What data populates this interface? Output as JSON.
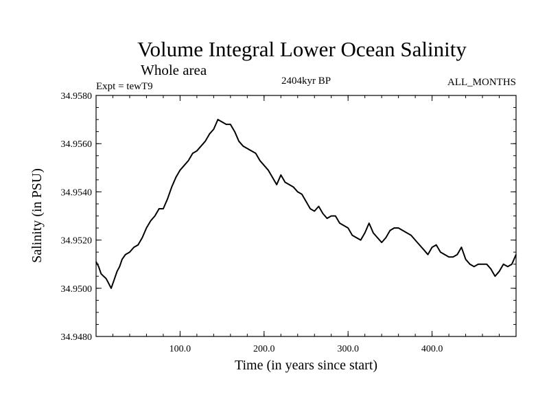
{
  "chart_data": {
    "type": "line",
    "title": "Volume Integral Lower Ocean Salinity",
    "subtitle": "Whole area",
    "expt_label": "Expt = tewT9",
    "center_label": "2404kyr BP",
    "right_label": "ALL_MONTHS",
    "xlabel": "Time (in years since start)",
    "ylabel": "Salinity (in PSU)",
    "xlim": [
      0,
      500
    ],
    "ylim": [
      34.948,
      34.958
    ],
    "xticks": [
      100,
      200,
      300,
      400
    ],
    "xtick_labels": [
      "100.0",
      "200.0",
      "300.0",
      "400.0"
    ],
    "yticks": [
      34.948,
      34.95,
      34.952,
      34.954,
      34.956,
      34.958
    ],
    "ytick_labels": [
      "34.9480",
      "34.9500",
      "34.9520",
      "34.9540",
      "34.9560",
      "34.9580"
    ],
    "series": [
      {
        "name": "salinity",
        "x": [
          0,
          3,
          6,
          9,
          12,
          15,
          18,
          21,
          25,
          28,
          31,
          35,
          40,
          45,
          50,
          55,
          60,
          65,
          70,
          75,
          80,
          85,
          90,
          95,
          100,
          105,
          110,
          115,
          120,
          125,
          130,
          135,
          140,
          145,
          150,
          155,
          160,
          165,
          170,
          175,
          180,
          185,
          190,
          195,
          200,
          205,
          210,
          215,
          220,
          225,
          230,
          235,
          240,
          245,
          250,
          255,
          260,
          265,
          270,
          275,
          280,
          285,
          290,
          295,
          300,
          305,
          310,
          315,
          320,
          325,
          330,
          335,
          340,
          345,
          350,
          355,
          360,
          365,
          370,
          375,
          380,
          385,
          390,
          395,
          400,
          405,
          410,
          415,
          420,
          425,
          430,
          435,
          440,
          445,
          450,
          455,
          460,
          465,
          470,
          475,
          480,
          485,
          490,
          495,
          500
        ],
        "values": [
          34.9511,
          34.9509,
          34.9506,
          34.9505,
          34.9504,
          34.9502,
          34.95,
          34.9503,
          34.9507,
          34.9509,
          34.9512,
          34.9514,
          34.9515,
          34.9517,
          34.9518,
          34.9521,
          34.9525,
          34.9528,
          34.953,
          34.9533,
          34.9533,
          34.9537,
          34.9542,
          34.9546,
          34.9549,
          34.9551,
          34.9553,
          34.9556,
          34.9557,
          34.9559,
          34.9561,
          34.9564,
          34.9566,
          34.957,
          34.9569,
          34.9568,
          34.9568,
          34.9565,
          34.9561,
          34.9559,
          34.9558,
          34.9557,
          34.9556,
          34.9553,
          34.9551,
          34.9549,
          34.9546,
          34.9543,
          34.9547,
          34.9544,
          34.9543,
          34.9542,
          34.954,
          34.9539,
          34.9536,
          34.9533,
          34.9532,
          34.9534,
          34.9531,
          34.9529,
          34.953,
          34.953,
          34.9527,
          34.9526,
          34.9525,
          34.9522,
          34.9521,
          34.952,
          34.9523,
          34.9527,
          34.9523,
          34.9521,
          34.9519,
          34.9521,
          34.9524,
          34.9525,
          34.9525,
          34.9524,
          34.9523,
          34.9522,
          34.952,
          34.9518,
          34.9516,
          34.9514,
          34.9517,
          34.9518,
          34.9515,
          34.9514,
          34.9513,
          34.9513,
          34.9514,
          34.9517,
          34.9512,
          34.951,
          34.9509,
          34.951,
          34.951,
          34.951,
          34.9508,
          34.9505,
          34.9507,
          34.951,
          34.9509,
          34.951,
          34.9514
        ]
      }
    ]
  }
}
